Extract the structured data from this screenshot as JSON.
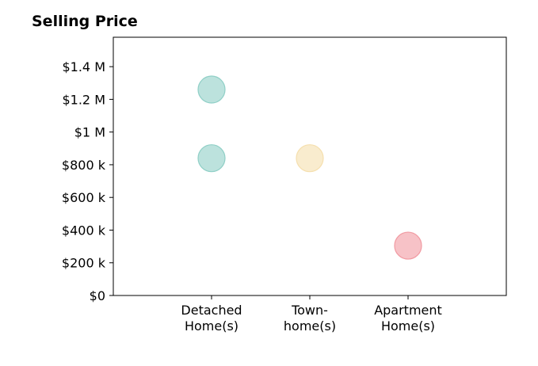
{
  "chart_data": {
    "type": "scatter",
    "title": "Selling Price",
    "xlabel": "",
    "ylabel": "",
    "categories": [
      [
        "Detached",
        "Home(s)"
      ],
      [
        "Town-",
        "home(s)"
      ],
      [
        "Apartment",
        "Home(s)"
      ]
    ],
    "ylim": [
      0,
      1580000
    ],
    "y_ticks": [
      0,
      200000,
      400000,
      600000,
      800000,
      1000000,
      1200000,
      1400000
    ],
    "y_tick_labels": [
      "$0",
      "$200 k",
      "$400 k",
      "$600 k",
      "$800 k",
      "$1 M",
      "$1.2 M",
      "$1.4 M"
    ],
    "grid": false,
    "legend": "none",
    "points": [
      {
        "category": 0,
        "y": 1260000,
        "color": "#8fcfc6"
      },
      {
        "category": 0,
        "y": 840000,
        "color": "#8fcfc6"
      },
      {
        "category": 1,
        "y": 840000,
        "color": "#f5dfae"
      },
      {
        "category": 2,
        "y": 305000,
        "color": "#f19aa2"
      }
    ]
  }
}
